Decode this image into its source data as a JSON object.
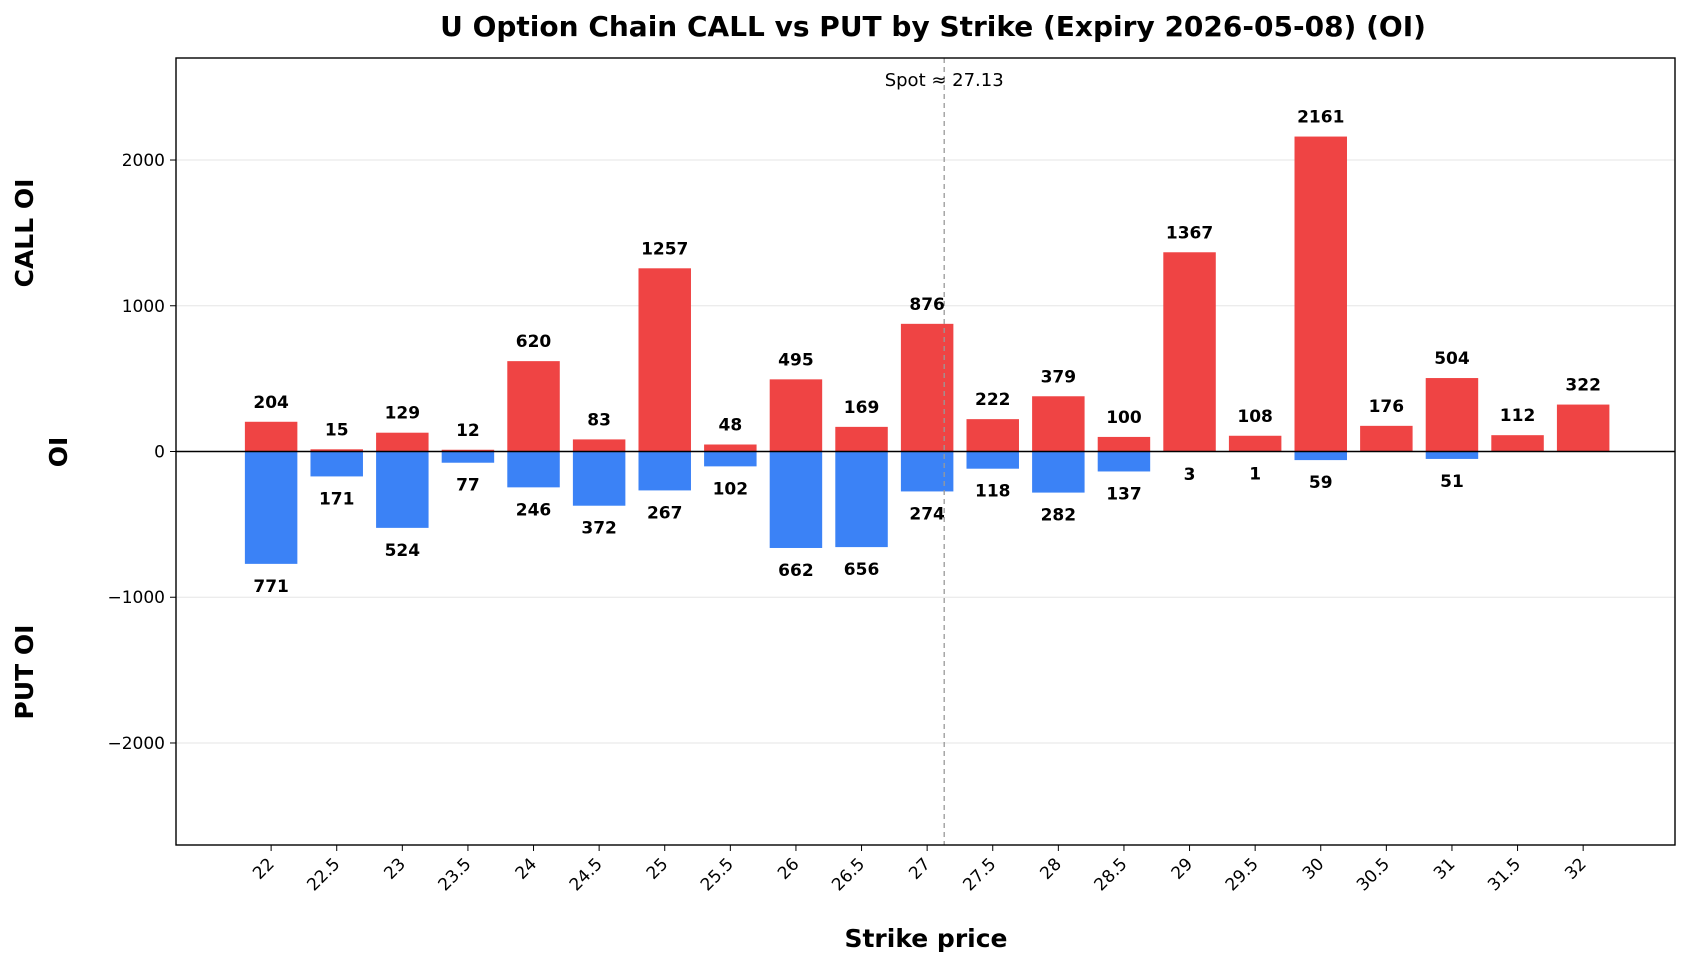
{
  "chart_data": {
    "type": "bar",
    "title": "U Option Chain CALL vs PUT by Strike (Expiry 2026-05-08) (OI)",
    "xlabel": "Strike price",
    "ylabel": "OI",
    "side_labels": {
      "top": "CALL OI",
      "bottom": "PUT OI"
    },
    "categories": [
      "22",
      "22.5",
      "23",
      "23.5",
      "24",
      "24.5",
      "25",
      "25.5",
      "26",
      "26.5",
      "27",
      "27.5",
      "28",
      "28.5",
      "29",
      "29.5",
      "30",
      "30.5",
      "31",
      "31.5",
      "32"
    ],
    "series": [
      {
        "name": "CALL OI",
        "color": "#ef4444",
        "values": [
          204,
          15,
          129,
          12,
          620,
          83,
          1257,
          48,
          495,
          169,
          876,
          222,
          379,
          100,
          1367,
          108,
          2161,
          176,
          504,
          112,
          322
        ],
        "labels": [
          "204",
          "15",
          "129",
          "12",
          "620",
          "83",
          "1257",
          "48",
          "495",
          "169",
          "876",
          "222",
          "379",
          "100",
          "1367",
          "108",
          "2161",
          "176",
          "504",
          "112",
          "322"
        ]
      },
      {
        "name": "PUT OI",
        "color": "#3b82f6",
        "values": [
          771,
          171,
          524,
          77,
          246,
          372,
          267,
          102,
          662,
          656,
          274,
          118,
          282,
          137,
          3,
          1,
          59,
          0,
          51,
          0,
          0
        ],
        "labels": [
          "771",
          "171",
          "524",
          "77",
          "246",
          "372",
          "267",
          "102",
          "662",
          "656",
          "274",
          "118",
          "282",
          "137",
          "3",
          "1",
          "59",
          "",
          "51",
          "",
          ""
        ]
      }
    ],
    "ylim": [
      -2700,
      2700
    ],
    "yticks": [
      -2000,
      -1000,
      0,
      1000,
      2000
    ],
    "ytick_labels": [
      "−2000",
      "−1000",
      "0",
      "1000",
      "2000"
    ],
    "spot": {
      "value": 27.13,
      "label": "Spot ≈ 27.13"
    },
    "grid": "horizontal"
  }
}
